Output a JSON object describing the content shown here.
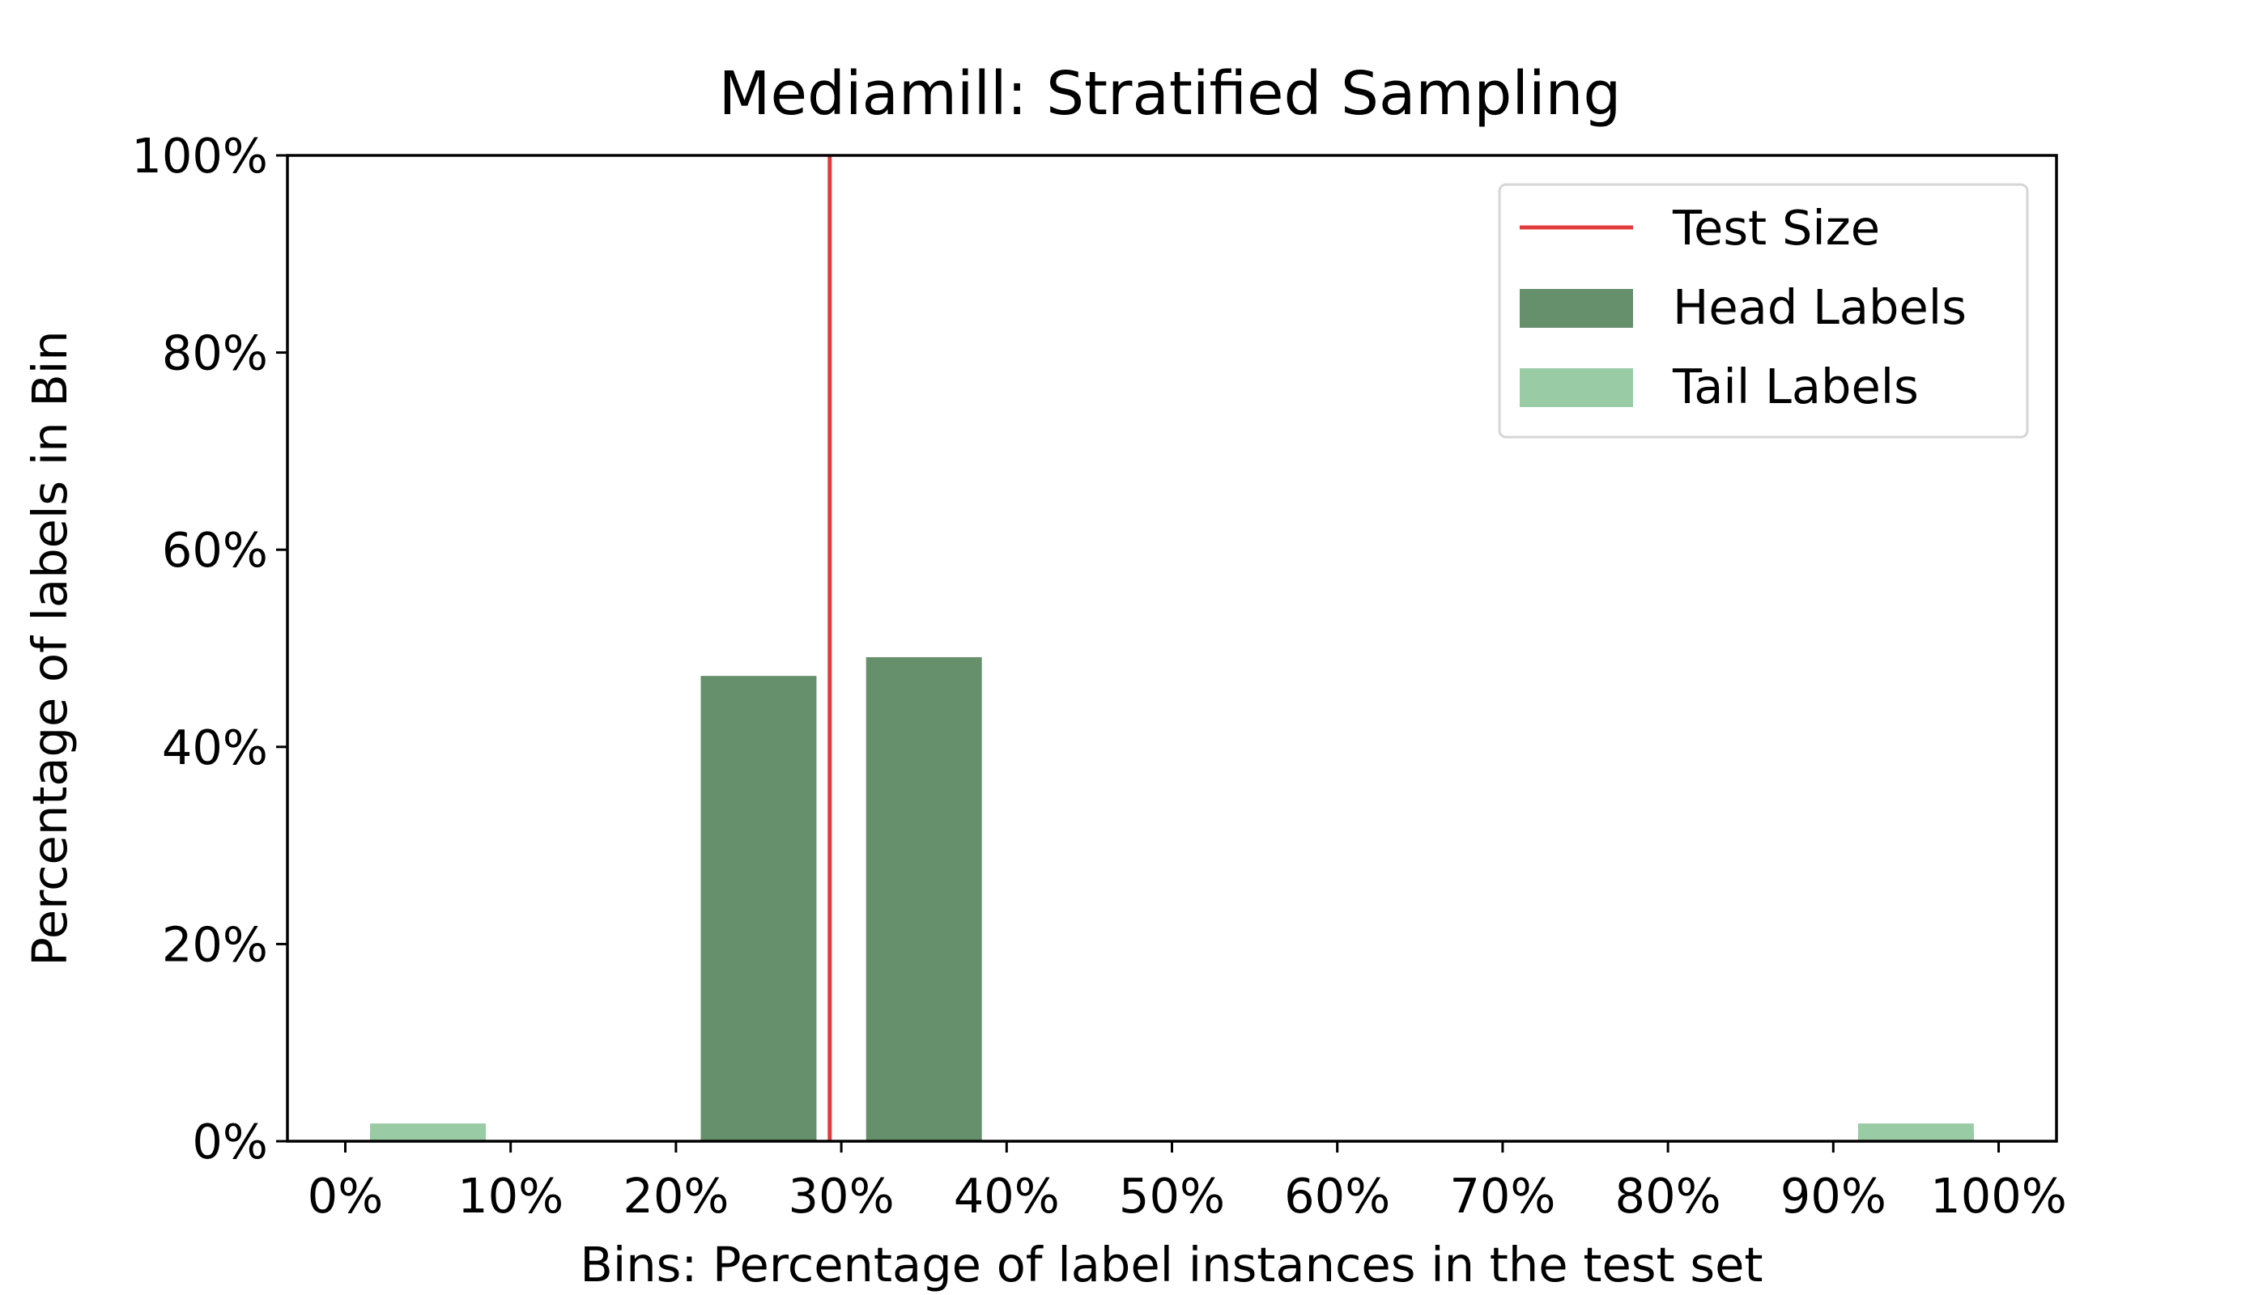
{
  "chart_data": {
    "type": "bar",
    "title": "Mediamill: Stratified Sampling",
    "xlabel": "Bins: Percentage of label instances in the test set",
    "ylabel": "Percentage of labels in Bin",
    "x_ticks": [
      "0%",
      "10%",
      "20%",
      "30%",
      "40%",
      "50%",
      "60%",
      "70%",
      "80%",
      "90%",
      "100%"
    ],
    "y_ticks": [
      "0%",
      "20%",
      "40%",
      "60%",
      "80%",
      "100%"
    ],
    "xlim": [
      -3.5,
      103.5
    ],
    "ylim": [
      0,
      100
    ],
    "bin_width": 7,
    "series": [
      {
        "name": "Head Labels",
        "color": "#668f6b",
        "bins": [
          {
            "center": 5,
            "value": 0.9
          },
          {
            "center": 25,
            "value": 47.2
          },
          {
            "center": 35,
            "value": 49.1
          },
          {
            "center": 95,
            "value": 0.9
          }
        ]
      },
      {
        "name": "Tail Labels",
        "color": "#99cba5",
        "bins": [
          {
            "center": 5,
            "value": 1.8
          },
          {
            "center": 95,
            "value": 1.8
          }
        ]
      }
    ],
    "reference_line": {
      "name": "Test Size",
      "x": 29.3,
      "color": "#e03c3c"
    },
    "legend": {
      "position": "top-right",
      "entries": [
        {
          "label": "Test Size",
          "kind": "line",
          "color": "#e03c3c"
        },
        {
          "label": "Head Labels",
          "kind": "patch",
          "color": "#668f6b"
        },
        {
          "label": "Tail Labels",
          "kind": "patch",
          "color": "#99cba5"
        }
      ]
    },
    "grid": false
  }
}
